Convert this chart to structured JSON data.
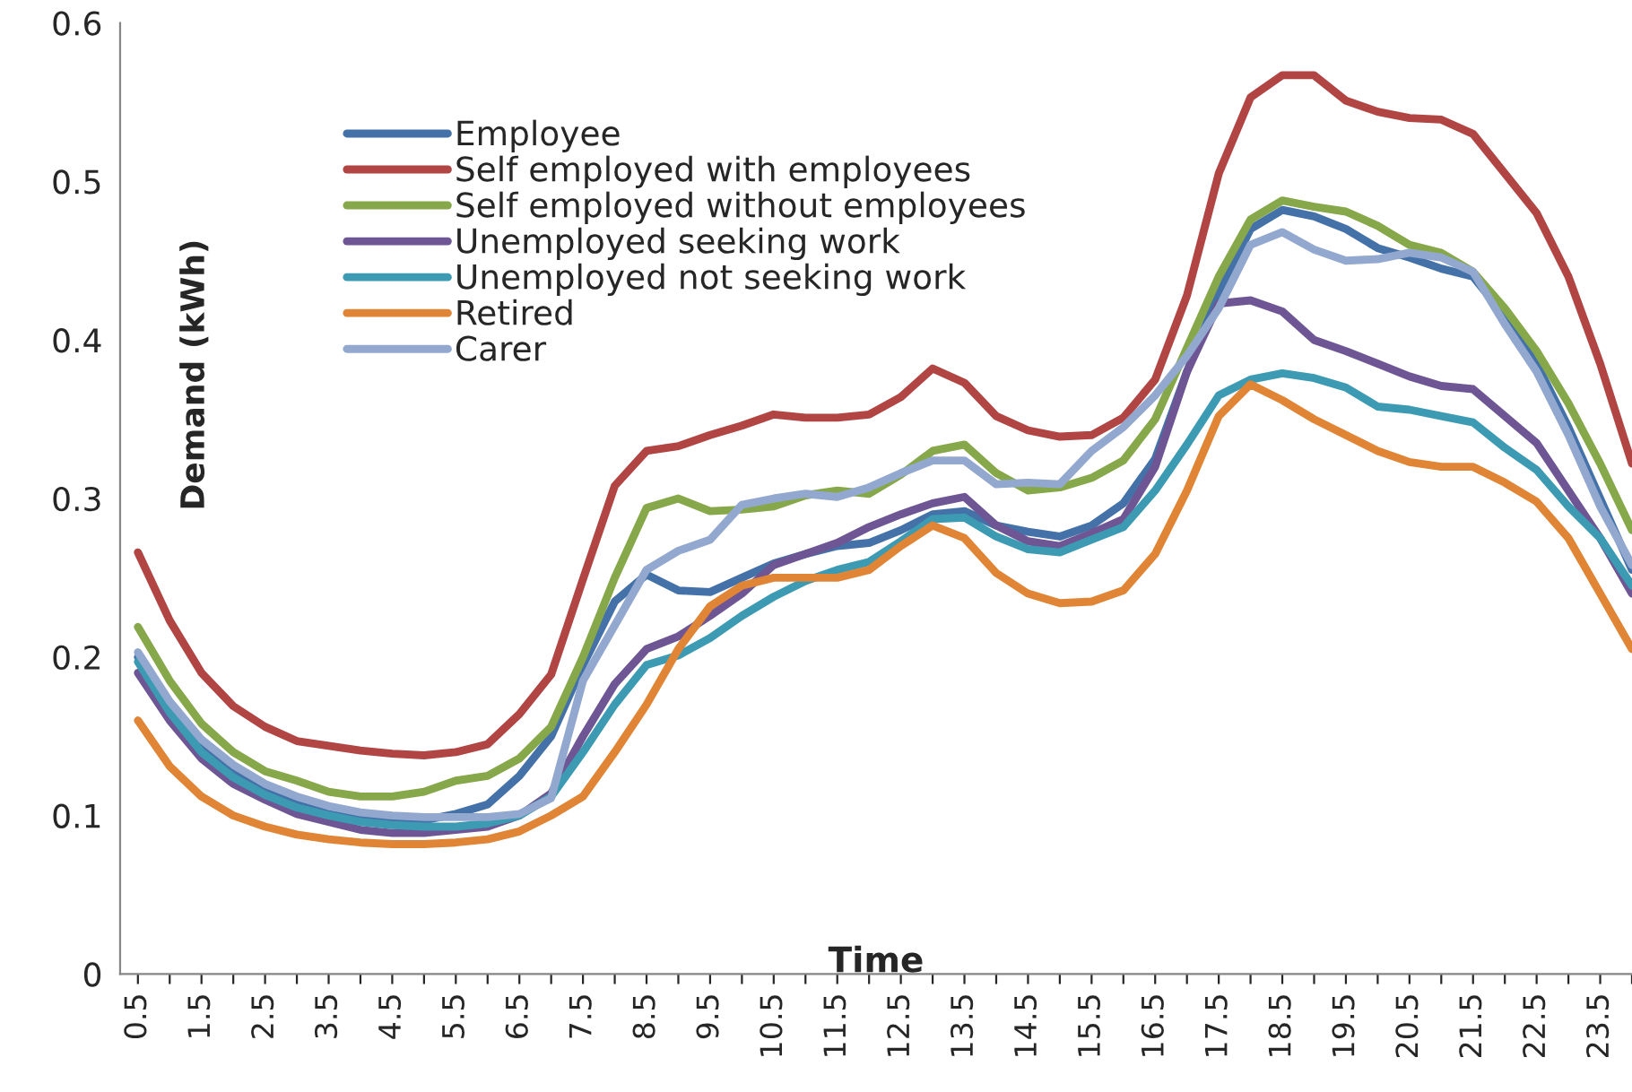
{
  "chart_data": {
    "type": "line",
    "xlabel": "Time",
    "ylabel": "Demand (kWh)",
    "categories": [
      "0.5",
      null,
      "1.5",
      null,
      "2.5",
      null,
      "3.5",
      null,
      "4.5",
      null,
      "5.5",
      null,
      "6.5",
      null,
      "7.5",
      null,
      "8.5",
      null,
      "9.5",
      null,
      "10.5",
      null,
      "11.5",
      null,
      "12.5",
      null,
      "13.5",
      null,
      "14.5",
      null,
      "15.5",
      null,
      "16.5",
      null,
      "17.5",
      null,
      "18.5",
      null,
      "19.5",
      null,
      "20.5",
      null,
      "21.5",
      null,
      "22.5",
      null,
      "23.5",
      null
    ],
    "ylim": [
      0,
      0.6
    ],
    "yticks": [
      0,
      0.1,
      0.2,
      0.3,
      0.4,
      0.5,
      0.6
    ],
    "grid": false,
    "legend": "top left",
    "marker": "none",
    "line_style": "solid",
    "series": [
      {
        "name": "Employee",
        "color": "#4472a8",
        "values": [
          0.2,
          0.17,
          0.145,
          0.127,
          0.115,
          0.107,
          0.101,
          0.098,
          0.097,
          0.097,
          0.101,
          0.107,
          0.125,
          0.15,
          0.195,
          0.235,
          0.252,
          0.242,
          0.241,
          0.25,
          0.259,
          0.265,
          0.27,
          0.272,
          0.28,
          0.29,
          0.292,
          0.283,
          0.279,
          0.276,
          0.283,
          0.297,
          0.325,
          0.38,
          0.43,
          0.47,
          0.482,
          0.478,
          0.47,
          0.458,
          0.452,
          0.445,
          0.44,
          0.415,
          0.385,
          0.345,
          0.3,
          0.255
        ]
      },
      {
        "name": "Self employed with employees",
        "color": "#b04543",
        "values": [
          0.266,
          0.223,
          0.19,
          0.169,
          0.156,
          0.147,
          0.144,
          0.141,
          0.139,
          0.138,
          0.14,
          0.145,
          0.164,
          0.189,
          0.249,
          0.308,
          0.33,
          0.333,
          0.34,
          0.346,
          0.353,
          0.351,
          0.351,
          0.353,
          0.364,
          0.382,
          0.373,
          0.352,
          0.343,
          0.339,
          0.34,
          0.351,
          0.375,
          0.428,
          0.505,
          0.553,
          0.567,
          0.567,
          0.551,
          0.544,
          0.54,
          0.539,
          0.53,
          0.505,
          0.48,
          0.44,
          0.385,
          0.322
        ]
      },
      {
        "name": "Self employed without employees",
        "color": "#86a84a",
        "values": [
          0.219,
          0.185,
          0.158,
          0.14,
          0.128,
          0.122,
          0.115,
          0.112,
          0.112,
          0.115,
          0.122,
          0.125,
          0.136,
          0.156,
          0.2,
          0.25,
          0.294,
          0.3,
          0.292,
          0.293,
          0.295,
          0.302,
          0.305,
          0.303,
          0.315,
          0.33,
          0.334,
          0.316,
          0.305,
          0.307,
          0.313,
          0.324,
          0.35,
          0.395,
          0.44,
          0.476,
          0.488,
          0.484,
          0.481,
          0.472,
          0.46,
          0.455,
          0.443,
          0.42,
          0.393,
          0.36,
          0.322,
          0.28
        ]
      },
      {
        "name": "Unemployed seeking work",
        "color": "#6e5593",
        "values": [
          0.19,
          0.16,
          0.136,
          0.12,
          0.11,
          0.101,
          0.096,
          0.091,
          0.089,
          0.089,
          0.091,
          0.093,
          0.1,
          0.114,
          0.15,
          0.183,
          0.205,
          0.213,
          0.226,
          0.24,
          0.258,
          0.265,
          0.272,
          0.282,
          0.29,
          0.297,
          0.301,
          0.283,
          0.273,
          0.27,
          0.278,
          0.287,
          0.32,
          0.38,
          0.423,
          0.425,
          0.418,
          0.4,
          0.393,
          0.385,
          0.377,
          0.371,
          0.369,
          0.352,
          0.335,
          0.305,
          0.275,
          0.24
        ]
      },
      {
        "name": "Unemployed not seeking work",
        "color": "#3d9ab3",
        "values": [
          0.197,
          0.165,
          0.14,
          0.124,
          0.113,
          0.105,
          0.1,
          0.096,
          0.094,
          0.093,
          0.093,
          0.095,
          0.1,
          0.112,
          0.14,
          0.17,
          0.195,
          0.201,
          0.212,
          0.226,
          0.238,
          0.248,
          0.255,
          0.26,
          0.273,
          0.287,
          0.288,
          0.276,
          0.268,
          0.266,
          0.274,
          0.282,
          0.305,
          0.334,
          0.365,
          0.375,
          0.379,
          0.376,
          0.37,
          0.358,
          0.356,
          0.352,
          0.348,
          0.332,
          0.318,
          0.295,
          0.275,
          0.245
        ]
      },
      {
        "name": "Retired",
        "color": "#e08536",
        "values": [
          0.16,
          0.131,
          0.112,
          0.1,
          0.093,
          0.088,
          0.085,
          0.083,
          0.082,
          0.082,
          0.083,
          0.085,
          0.09,
          0.1,
          0.112,
          0.14,
          0.17,
          0.205,
          0.232,
          0.245,
          0.25,
          0.25,
          0.25,
          0.255,
          0.27,
          0.283,
          0.275,
          0.253,
          0.24,
          0.234,
          0.235,
          0.242,
          0.265,
          0.305,
          0.352,
          0.372,
          0.362,
          0.35,
          0.34,
          0.33,
          0.323,
          0.32,
          0.32,
          0.31,
          0.298,
          0.275,
          0.24,
          0.205
        ]
      },
      {
        "name": "Carer",
        "color": "#92a8cf",
        "values": [
          0.203,
          0.172,
          0.148,
          0.132,
          0.12,
          0.112,
          0.106,
          0.102,
          0.1,
          0.099,
          0.099,
          0.099,
          0.101,
          0.111,
          0.185,
          0.22,
          0.255,
          0.267,
          0.274,
          0.296,
          0.3,
          0.303,
          0.301,
          0.307,
          0.316,
          0.324,
          0.324,
          0.309,
          0.31,
          0.309,
          0.33,
          0.345,
          0.365,
          0.39,
          0.42,
          0.46,
          0.468,
          0.457,
          0.45,
          0.451,
          0.455,
          0.452,
          0.443,
          0.41,
          0.38,
          0.34,
          0.295,
          0.258
        ]
      }
    ]
  }
}
